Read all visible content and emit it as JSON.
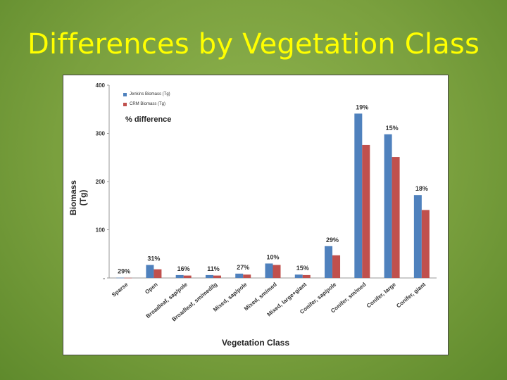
{
  "slide": {
    "title": "Differences by Vegetation Class"
  },
  "colors": {
    "series1": "#4f81bd",
    "series2": "#c0504d",
    "title": "#ffff00"
  },
  "chart_data": {
    "type": "bar",
    "title": "",
    "pct_title": "% difference",
    "xlabel": "Vegetation Class",
    "ylabel": "Biomass (Tg)",
    "ylim": [
      0,
      400
    ],
    "yticks": [
      "400",
      "300",
      "200",
      "100",
      "-"
    ],
    "grid": false,
    "legend_position": "top-left",
    "categories": [
      "Sparse",
      "Open",
      "Broadleaf, sap/pole",
      "Broadleaf, sm/med/lg",
      "Mixed, sap/pole",
      "Mixed, sm/med",
      "Mixed, large+giant",
      "Conifer, sap/pole",
      "Conifer, sm/med",
      "Conifer, large",
      "Conifer, giant"
    ],
    "series": [
      {
        "name": "Jenkins Biomass (Tg)",
        "values": [
          0.5,
          27,
          6,
          6,
          9,
          30,
          7,
          66,
          341,
          298,
          172
        ]
      },
      {
        "name": "CRM Biomass (Tg)",
        "values": [
          0.3,
          18,
          5,
          5,
          7,
          27,
          6,
          47,
          276,
          251,
          141
        ]
      }
    ],
    "annotations": [
      "29%",
      "31%",
      "16%",
      "11%",
      "27%",
      "10%",
      "15%",
      "29%",
      "19%",
      "15%",
      "18%"
    ]
  }
}
